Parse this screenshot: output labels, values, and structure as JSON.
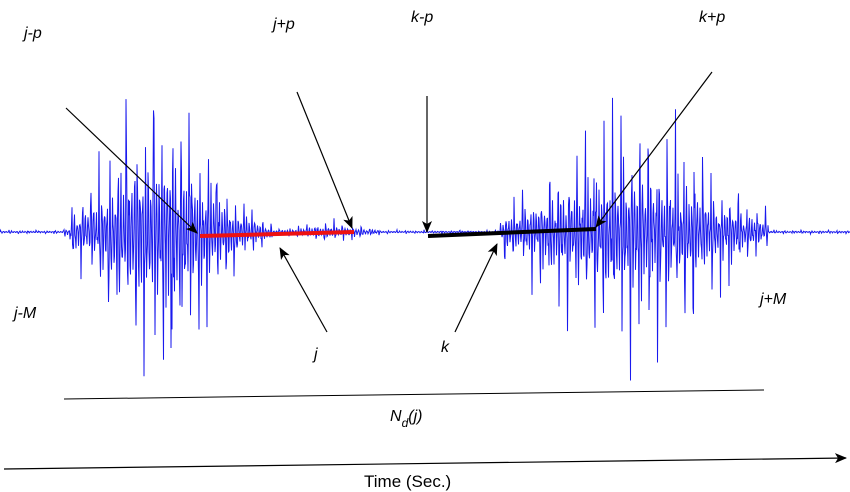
{
  "labels": {
    "j_minus_p": "j-p",
    "j_plus_p": "j+p",
    "k_minus_p": "k-p",
    "k_plus_p": "k+p",
    "j_minus_M": "j-M",
    "j_plus_M": "j+M",
    "j": "j",
    "k": "k",
    "nd_base": "N",
    "nd_sub": "d",
    "nd_arg": "(j)"
  },
  "axis": {
    "label": "Time (Sec.)"
  },
  "colors": {
    "waveform": "#1a1aee",
    "segment_j": "#ee1111",
    "segment_k": "#000000",
    "lines": "#000000"
  }
}
